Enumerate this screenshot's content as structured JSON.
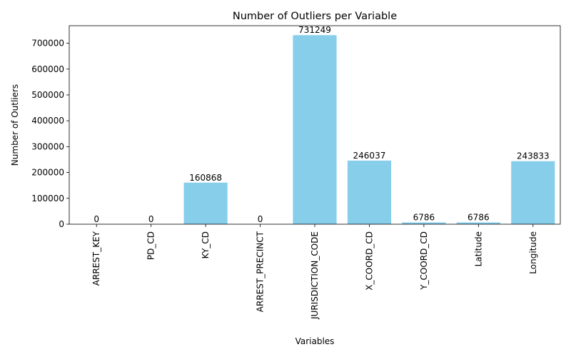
{
  "chart_data": {
    "type": "bar",
    "title": "Number of Outliers per Variable",
    "xlabel": "Variables",
    "ylabel": "Number of Outliers",
    "categories": [
      "ARREST_KEY",
      "PD_CD",
      "KY_CD",
      "ARREST_PRECINCT",
      "JURISDICTION_CODE",
      "X_COORD_CD",
      "Y_COORD_CD",
      "Latitude",
      "Longitude"
    ],
    "values": [
      0,
      0,
      160868,
      0,
      731249,
      246037,
      6786,
      6786,
      243833
    ],
    "data_labels": [
      "0",
      "0",
      "160868",
      "0",
      "731249",
      "246037",
      "6786",
      "6786",
      "243833"
    ],
    "ylim": [
      0,
      767811
    ],
    "yticks": [
      0,
      100000,
      200000,
      300000,
      400000,
      500000,
      600000,
      700000
    ],
    "grid": false,
    "legend": "none",
    "bar_color": "#87CEEB"
  }
}
